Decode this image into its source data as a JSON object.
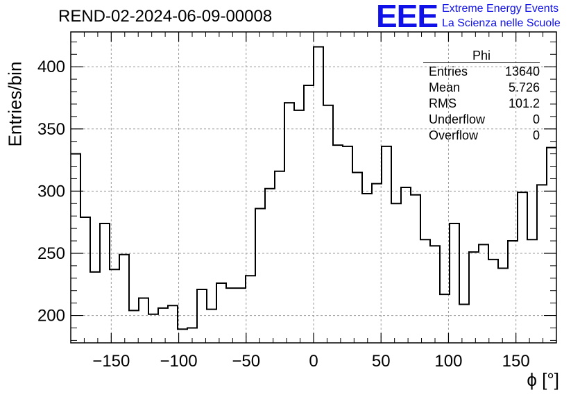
{
  "header": {
    "run_title": "REND-02-2024-06-09-00008",
    "logo_mark": "EEE",
    "logo_line1": "Extreme Energy Events",
    "logo_line2": "La Scienza nelle Scuole",
    "logo_color": "#1010e8"
  },
  "stats": {
    "title": "Phi",
    "rows": [
      {
        "label": "Entries",
        "value": "13640"
      },
      {
        "label": "Mean",
        "value": "5.726"
      },
      {
        "label": "RMS",
        "value": "101.2"
      },
      {
        "label": "Underflow",
        "value": "0"
      },
      {
        "label": "Overflow",
        "value": "0"
      }
    ]
  },
  "chart_data": {
    "type": "histogram",
    "xlabel": "ϕ [°]",
    "ylabel": "Entries/bin",
    "xlim": [
      -180,
      180
    ],
    "ylim": [
      178,
      428
    ],
    "bin_width": 7.2,
    "bin_start": -180,
    "x_ticks": [
      -150,
      -100,
      -50,
      0,
      50,
      100,
      150
    ],
    "x_tick_labels": [
      "−150",
      "−100",
      "−50",
      "0",
      "50",
      "100",
      "150"
    ],
    "y_ticks": [
      200,
      250,
      300,
      350,
      400
    ],
    "y_tick_labels": [
      "200",
      "250",
      "300",
      "350",
      "400"
    ],
    "grid": true,
    "line_color": "#000000",
    "values": [
      330,
      279,
      235,
      274,
      237,
      249,
      204,
      214,
      201,
      206,
      208,
      189,
      190,
      221,
      205,
      226,
      222,
      222,
      232,
      286,
      302,
      316,
      371,
      365,
      385,
      416,
      369,
      337,
      336,
      315,
      298,
      306,
      336,
      290,
      303,
      297,
      261,
      256,
      217,
      274,
      209,
      251,
      257,
      245,
      238,
      260,
      299,
      261,
      305,
      335
    ]
  }
}
